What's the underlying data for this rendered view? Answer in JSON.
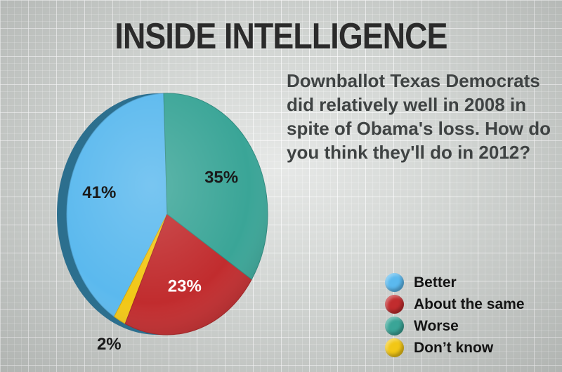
{
  "title": "INSIDE INTELLIGENCE",
  "question": "Downballot Texas Democrats did relatively well in 2008 in spite of Obama's loss. How do you think they'll do in 2012?",
  "chart_data": {
    "type": "pie",
    "categories": [
      "Better",
      "About the same",
      "Worse",
      "Don’t know"
    ],
    "values": [
      41,
      23,
      35,
      2
    ],
    "labels": [
      "41%",
      "23%",
      "35%",
      "2%"
    ],
    "colors": [
      "#5bb9ee",
      "#c12c2e",
      "#3aa597",
      "#f2c716"
    ],
    "legend_position": "bottom-right"
  },
  "legend": {
    "items": [
      {
        "label": "Better",
        "color": "#5bb9ee"
      },
      {
        "label": "About the same",
        "color": "#c12c2e"
      },
      {
        "label": "Worse",
        "color": "#3aa597"
      },
      {
        "label": "Don’t know",
        "color": "#f2c716"
      }
    ]
  }
}
